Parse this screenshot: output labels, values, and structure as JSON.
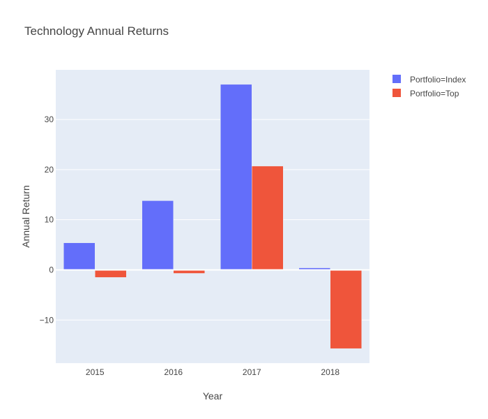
{
  "chart_data": {
    "type": "bar",
    "title": "Technology Annual Returns",
    "xlabel": "Year",
    "ylabel": "Annual Return",
    "categories": [
      "2015",
      "2016",
      "2017",
      "2018"
    ],
    "series": [
      {
        "name": "Portfolio=Index",
        "values": [
          5.4,
          13.8,
          37.0,
          0.4
        ],
        "color": "#636efa"
      },
      {
        "name": "Portfolio=Top",
        "values": [
          -1.5,
          -0.7,
          20.7,
          -15.7
        ],
        "color": "#ef553b"
      }
    ],
    "ylim": [
      -18.6,
      39.9
    ],
    "yticks": [
      -10,
      0,
      10,
      20,
      30
    ],
    "ytick_labels": [
      "−10",
      "0",
      "10",
      "20",
      "30"
    ],
    "grid": true,
    "legend_position": "top-right",
    "plot_bg": "#e5ecf6"
  }
}
